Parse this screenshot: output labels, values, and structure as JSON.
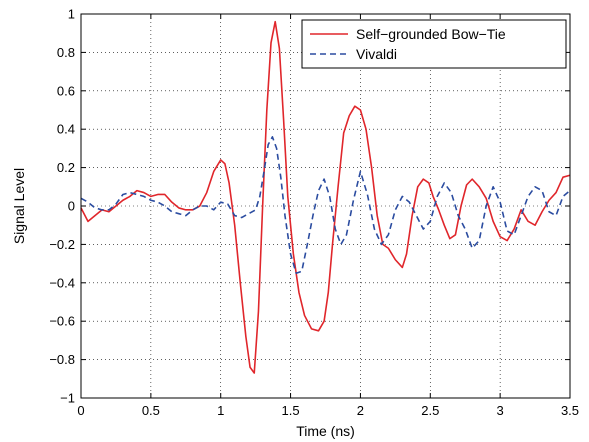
{
  "chart_data": {
    "type": "line",
    "title": "",
    "xlabel": "Time (ns)",
    "ylabel": "Signal Level",
    "xlim": [
      0,
      3.5
    ],
    "ylim": [
      -1,
      1
    ],
    "xticks": [
      0,
      0.5,
      1,
      1.5,
      2,
      2.5,
      3,
      3.5
    ],
    "xtick_labels": [
      "0",
      "0.5",
      "1",
      "1.5",
      "2",
      "2.5",
      "3",
      "3.5"
    ],
    "yticks": [
      -1,
      -0.8,
      -0.6,
      -0.4,
      -0.2,
      0,
      0.2,
      0.4,
      0.6,
      0.8,
      1
    ],
    "ytick_labels": [
      "−1",
      "−0.8",
      "−0.6",
      "−0.4",
      "−0.2",
      "0",
      "0.2",
      "0.4",
      "0.6",
      "0.8",
      "1"
    ],
    "grid": true,
    "legend_position": "top-right",
    "series": [
      {
        "name": "Self−grounded Bow−Tie",
        "color": "#e0262b",
        "style": "solid",
        "x": [
          0,
          0.05,
          0.1,
          0.15,
          0.2,
          0.25,
          0.3,
          0.35,
          0.4,
          0.45,
          0.5,
          0.55,
          0.6,
          0.65,
          0.7,
          0.75,
          0.8,
          0.85,
          0.9,
          0.95,
          1.0,
          1.03,
          1.06,
          1.1,
          1.14,
          1.18,
          1.21,
          1.24,
          1.27,
          1.3,
          1.33,
          1.36,
          1.39,
          1.42,
          1.45,
          1.48,
          1.52,
          1.56,
          1.6,
          1.65,
          1.7,
          1.74,
          1.77,
          1.8,
          1.84,
          1.88,
          1.92,
          1.96,
          2.0,
          2.04,
          2.08,
          2.12,
          2.16,
          2.2,
          2.25,
          2.3,
          2.33,
          2.37,
          2.41,
          2.45,
          2.49,
          2.52,
          2.56,
          2.6,
          2.64,
          2.68,
          2.72,
          2.76,
          2.8,
          2.85,
          2.9,
          2.95,
          3.0,
          3.05,
          3.1,
          3.15,
          3.2,
          3.25,
          3.3,
          3.35,
          3.4,
          3.45,
          3.5
        ],
        "y": [
          -0.01,
          -0.08,
          -0.05,
          -0.02,
          -0.03,
          0.0,
          0.03,
          0.05,
          0.08,
          0.07,
          0.05,
          0.06,
          0.06,
          0.02,
          -0.01,
          -0.02,
          -0.02,
          0.0,
          0.07,
          0.18,
          0.24,
          0.22,
          0.12,
          -0.1,
          -0.4,
          -0.68,
          -0.84,
          -0.87,
          -0.55,
          0.0,
          0.5,
          0.85,
          0.96,
          0.82,
          0.45,
          0.05,
          -0.25,
          -0.45,
          -0.57,
          -0.64,
          -0.65,
          -0.6,
          -0.45,
          -0.2,
          0.1,
          0.38,
          0.47,
          0.52,
          0.5,
          0.4,
          0.2,
          -0.05,
          -0.2,
          -0.22,
          -0.28,
          -0.32,
          -0.25,
          -0.05,
          0.1,
          0.14,
          0.12,
          0.05,
          -0.02,
          -0.1,
          -0.17,
          -0.15,
          0.0,
          0.11,
          0.14,
          0.1,
          0.04,
          -0.08,
          -0.16,
          -0.18,
          -0.12,
          -0.02,
          -0.08,
          -0.1,
          -0.03,
          0.03,
          0.07,
          0.15,
          0.16
        ]
      },
      {
        "name": "Vivaldi",
        "color": "#2b4ca0",
        "style": "dashed",
        "x": [
          0,
          0.05,
          0.1,
          0.15,
          0.2,
          0.25,
          0.3,
          0.35,
          0.4,
          0.45,
          0.5,
          0.55,
          0.6,
          0.65,
          0.7,
          0.75,
          0.8,
          0.85,
          0.9,
          0.95,
          1.0,
          1.05,
          1.1,
          1.15,
          1.2,
          1.25,
          1.28,
          1.31,
          1.34,
          1.37,
          1.4,
          1.43,
          1.46,
          1.5,
          1.54,
          1.58,
          1.62,
          1.66,
          1.7,
          1.74,
          1.78,
          1.82,
          1.86,
          1.9,
          1.95,
          2.0,
          2.05,
          2.1,
          2.15,
          2.2,
          2.25,
          2.3,
          2.35,
          2.4,
          2.45,
          2.5,
          2.55,
          2.6,
          2.65,
          2.7,
          2.75,
          2.8,
          2.85,
          2.9,
          2.95,
          3.0,
          3.05,
          3.1,
          3.15,
          3.2,
          3.25,
          3.3,
          3.35,
          3.4,
          3.45,
          3.5
        ],
        "y": [
          0.04,
          0.02,
          -0.01,
          -0.02,
          -0.02,
          0.01,
          0.06,
          0.07,
          0.06,
          0.05,
          0.03,
          0.02,
          0.0,
          -0.03,
          -0.04,
          -0.05,
          -0.02,
          0.0,
          0.0,
          -0.02,
          0.02,
          0.01,
          -0.05,
          -0.06,
          -0.04,
          -0.02,
          0.05,
          0.18,
          0.32,
          0.36,
          0.3,
          0.15,
          -0.05,
          -0.25,
          -0.35,
          -0.34,
          -0.2,
          -0.05,
          0.08,
          0.14,
          0.05,
          -0.12,
          -0.2,
          -0.15,
          0.03,
          0.18,
          0.06,
          -0.12,
          -0.2,
          -0.15,
          -0.02,
          0.05,
          0.02,
          -0.05,
          -0.12,
          -0.08,
          0.05,
          0.12,
          0.07,
          -0.05,
          -0.12,
          -0.22,
          -0.18,
          0.0,
          0.1,
          0.02,
          -0.13,
          -0.15,
          -0.05,
          0.05,
          0.1,
          0.08,
          -0.03,
          -0.05,
          0.05,
          0.08
        ]
      }
    ]
  }
}
